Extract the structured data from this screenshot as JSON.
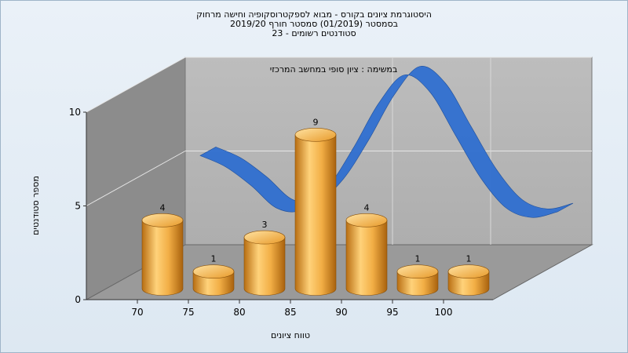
{
  "header": {
    "line1": "היסטוגרמת ציונים בקורס - מבוא לספקטרוסקופיה וחישה מרחוק",
    "line2": "בסמסטר   (01/2019)  סמסטר חורף 2019/20",
    "line3": "סטודנטים רשומים - 23"
  },
  "chart_data": {
    "type": "bar",
    "title": "במשימה : ציון סופי במחשב המרכזי",
    "xlabel": "טווח ציונים",
    "ylabel": "מספר סטודנטים",
    "categories": [
      "70",
      "75",
      "80",
      "85",
      "90",
      "95",
      "100"
    ],
    "values": [
      4,
      1,
      3,
      9,
      4,
      1,
      1
    ],
    "ylim": [
      0,
      10
    ],
    "yticks": [
      0,
      5,
      10
    ],
    "grid": true,
    "three_d": true,
    "bar_color": "#f0a030",
    "curve_color": "#2f6fd0",
    "curve": {
      "x": [
        70,
        72.5,
        75,
        77.5,
        80,
        82.5,
        85,
        87.5,
        90,
        92.5,
        95,
        97.5,
        100,
        102.5,
        105
      ],
      "y": [
        5.8,
        5.2,
        4.2,
        3.0,
        2.9,
        4.1,
        6.2,
        8.6,
        10.1,
        9.2,
        6.9,
        4.6,
        3.0,
        2.5,
        2.8
      ]
    }
  }
}
